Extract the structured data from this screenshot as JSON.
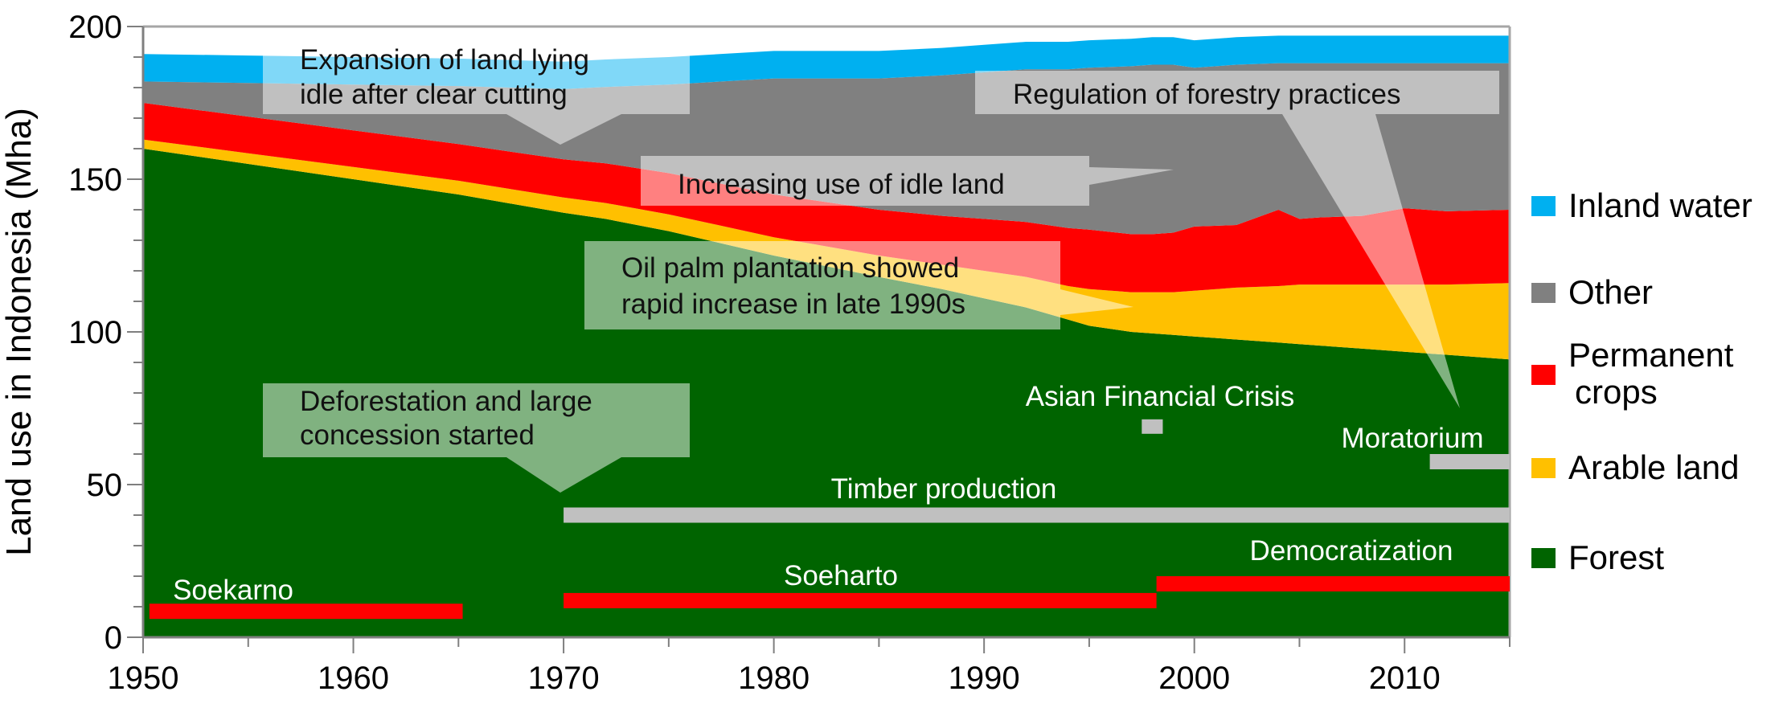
{
  "chart_data": {
    "type": "area",
    "title": "",
    "xlabel": "",
    "ylabel": "Land use in Indonesia (Mha)",
    "xlim": [
      1950,
      2015
    ],
    "ylim": [
      0,
      200
    ],
    "xticks": [
      1950,
      1960,
      1970,
      1980,
      1990,
      2000,
      2010
    ],
    "yticks": [
      0,
      50,
      100,
      150,
      200
    ],
    "grid": false,
    "legend_position": "right",
    "x": [
      1950,
      1955,
      1960,
      1965,
      1970,
      1972,
      1975,
      1980,
      1985,
      1988,
      1990,
      1992,
      1994,
      1995,
      1997,
      1998,
      1999,
      2000,
      2002,
      2004,
      2005,
      2006,
      2008,
      2010,
      2012,
      2015
    ],
    "series": [
      {
        "name": "Forest",
        "color": "#006400",
        "values": [
          160,
          155,
          150,
          145,
          139,
          137,
          133,
          125,
          118,
          114,
          111,
          108,
          104,
          102,
          100,
          99.5,
          99,
          98.5,
          97.5,
          96.5,
          96,
          95.5,
          94.5,
          93.5,
          92.5,
          91
        ]
      },
      {
        "name": "Arable land",
        "color": "#FFC000",
        "values": [
          3,
          3.5,
          4,
          4.5,
          5,
          5.2,
          5.5,
          6,
          7,
          8,
          9,
          10,
          11,
          12,
          13,
          13.5,
          14,
          15,
          17,
          18.5,
          19.5,
          20,
          21,
          22,
          23,
          25
        ]
      },
      {
        "name": "Permanent crops",
        "color": "#FF0000",
        "values": [
          12,
          12,
          12,
          12,
          12.5,
          13,
          13.5,
          14,
          15,
          16,
          17,
          18,
          19,
          19.5,
          19,
          19,
          19.5,
          21,
          20.5,
          25,
          21.5,
          22,
          22.5,
          25,
          24,
          24
        ]
      },
      {
        "name": "Other",
        "color": "#808080",
        "values": [
          7,
          11,
          15,
          19,
          23,
          25,
          29,
          38,
          43,
          46,
          48,
          50,
          52,
          53,
          55,
          55.5,
          55,
          52,
          52.5,
          48,
          51,
          50.5,
          50,
          47.5,
          48.5,
          48
        ]
      },
      {
        "name": "Inland water",
        "color": "#00B0F0",
        "values": [
          9,
          9,
          9,
          9,
          9,
          9,
          9,
          9,
          9,
          9,
          9,
          9,
          9,
          9,
          9,
          9,
          9,
          9,
          9,
          9,
          9,
          9,
          9,
          9,
          9,
          9
        ]
      }
    ],
    "legend": [
      "Inland water",
      "Other",
      "Permanent crops",
      "Arable land",
      "Forest"
    ],
    "legend_lines": [
      [
        "Inland water"
      ],
      [
        "Other"
      ],
      [
        "Permanent",
        "crops"
      ],
      [
        "Arable land"
      ],
      [
        "Forest"
      ]
    ],
    "event_bars": [
      {
        "label": "Soekarno",
        "start": 1950.3,
        "end": 1965.2,
        "value": 8.5,
        "color": "#FF0000"
      },
      {
        "label": "Soeharto",
        "start": 1970,
        "end": 1998.2,
        "value": 12,
        "color": "#FF0000"
      },
      {
        "label": "Democratization",
        "start": 1998.2,
        "end": 2015,
        "value": 17.5,
        "color": "#FF0000"
      },
      {
        "label": "Timber production",
        "start": 1970,
        "end": 2015,
        "value": 40,
        "color": "#C0C0C0"
      },
      {
        "label": "Asian Financial Crisis",
        "start": 1997.5,
        "end": 1998.5,
        "value": 69,
        "color": "#C0C0C0"
      },
      {
        "label": "Moratorium",
        "start": 2011.2,
        "end": 2015,
        "value": 57.5,
        "color": "#C0C0C0"
      }
    ],
    "annotations": [
      {
        "lines": [
          "Expansion of land lying",
          "idle after clear cutting"
        ],
        "target": [
          1970,
          160
        ]
      },
      {
        "lines": [
          "Increasing use of idle land"
        ],
        "target": [
          1998,
          153
        ]
      },
      {
        "lines": [
          "Oil palm plantation showed",
          "rapid increase in late 1990s"
        ],
        "target": [
          1998,
          110
        ]
      },
      {
        "lines": [
          "Deforestation and large",
          "concession started"
        ],
        "target": [
          1970,
          48
        ]
      },
      {
        "lines": [
          "Regulation of forestry practices"
        ],
        "target": [
          2012.7,
          75
        ]
      }
    ]
  }
}
